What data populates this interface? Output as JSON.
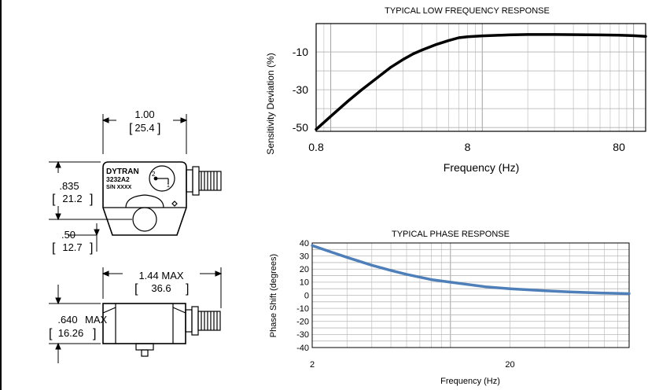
{
  "drawing": {
    "top_width": {
      "inch": "1.00",
      "mm": "25.4"
    },
    "height": {
      "inch": ".835",
      "mm": "21.2"
    },
    "hole_offset": {
      "inch": ".50",
      "mm": "12.7"
    },
    "length": {
      "inch": "1.44 MAX",
      "mm": "36.6"
    },
    "thickness": {
      "inch": ".640",
      "max": "MAX",
      "mm": "16.26"
    },
    "label": {
      "brand": "DYTRAN",
      "model": "3232A2",
      "serial": "S/N XXXX"
    },
    "axis_marks": {
      "a": "2",
      "b": "1"
    }
  },
  "chart_data": [
    {
      "type": "line",
      "title": "TYPICAL LOW FREQUENCY RESPONSE",
      "xlabel": "Frequency (Hz)",
      "ylabel": "Sensitivity Deviation (%)",
      "x_scale": "log",
      "xlim": [
        0.8,
        120
      ],
      "ylim": [
        -52,
        5
      ],
      "x_ticks": [
        "0.8",
        "8",
        "80"
      ],
      "y_ticks": [
        "-10",
        "-30",
        "-50"
      ],
      "grid": true,
      "line_color": "#000000",
      "series": [
        {
          "x": [
            0.8,
            1.0,
            1.3,
            1.6,
            2.0,
            2.5,
            3.0,
            3.5,
            4.0,
            5.0,
            6.0,
            7.0,
            8.0,
            10,
            15,
            20,
            30,
            50,
            80,
            100,
            120
          ],
          "y": [
            -51,
            -44,
            -36,
            -30,
            -24,
            -18,
            -14,
            -11,
            -9,
            -6,
            -4,
            -2.5,
            -2,
            -1.5,
            -1,
            -0.8,
            -0.8,
            -0.9,
            -1.1,
            -1.4,
            -1.8
          ]
        }
      ]
    },
    {
      "type": "line",
      "title": "TYPICAL PHASE RESPONSE",
      "xlabel": "Frequency (Hz)",
      "ylabel": "Phase Shift (degrees)",
      "x_scale": "log",
      "xlim": [
        2,
        80
      ],
      "ylim": [
        -40,
        40
      ],
      "x_ticks": [
        "2",
        "20"
      ],
      "y_ticks": [
        "40",
        "30",
        "20",
        "10",
        "0",
        "-10",
        "-20",
        "-30",
        "-40"
      ],
      "grid": true,
      "line_color": "#4f7fb8",
      "series": [
        {
          "x": [
            2,
            2.5,
            3,
            4,
            5,
            6,
            8,
            10,
            15,
            20,
            30,
            40,
            60,
            80
          ],
          "y": [
            38,
            33,
            29,
            23,
            19,
            16,
            12,
            10,
            6.5,
            5,
            3.4,
            2.5,
            1.6,
            1.2
          ]
        }
      ]
    }
  ]
}
